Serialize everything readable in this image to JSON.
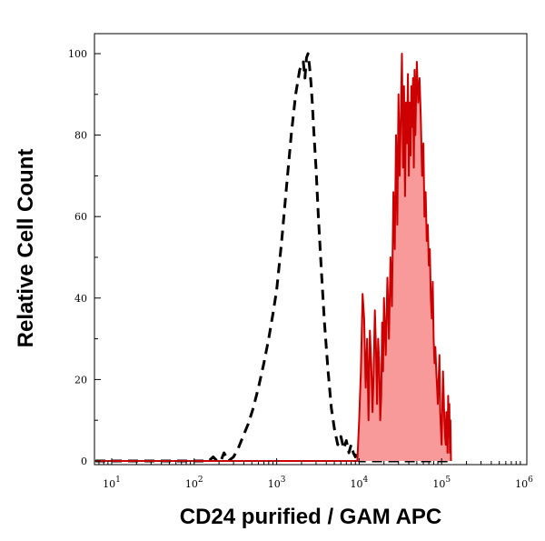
{
  "chart_data": {
    "type": "area",
    "xlabel": "CD24 purified / GAM APC",
    "ylabel": "Relative Cell Count",
    "x_scale": "log",
    "xlim": [
      5,
      130000
    ],
    "ylim": [
      0,
      100
    ],
    "x_ticks": [
      {
        "base": "10",
        "exp": "1",
        "value": 10
      },
      {
        "base": "10",
        "exp": "2",
        "value": 100
      },
      {
        "base": "10",
        "exp": "3",
        "value": 1000
      },
      {
        "base": "10",
        "exp": "4",
        "value": 10000
      },
      {
        "base": "10",
        "exp": "5",
        "value": 100000
      },
      {
        "base": "10",
        "exp": "6",
        "value": 1000000
      }
    ],
    "y_ticks": [
      "0",
      "20",
      "40",
      "60",
      "80",
      "100"
    ],
    "grid": false,
    "series": [
      {
        "style": "dashed",
        "color": "#000000",
        "x": [
          5,
          150,
          170,
          190,
          210,
          230,
          260,
          300,
          340,
          390,
          450,
          520,
          600,
          700,
          800,
          900,
          1000,
          1150,
          1300,
          1500,
          1700,
          1900,
          2100,
          2200,
          2300,
          2400,
          2500,
          2600,
          2700,
          2800,
          3000,
          3200,
          3500,
          3800,
          4200,
          4600,
          5000,
          5500,
          6000,
          6500,
          7000,
          7500,
          8000,
          8500,
          9000,
          9500,
          10000,
          130000
        ],
        "y": [
          0,
          0,
          1,
          0,
          0,
          2,
          0,
          1,
          3,
          6,
          9,
          13,
          18,
          24,
          30,
          36,
          42,
          54,
          66,
          80,
          90,
          96,
          98,
          94,
          99,
          100,
          97,
          93,
          88,
          82,
          72,
          60,
          46,
          34,
          22,
          13,
          8,
          4,
          6,
          3,
          5,
          2,
          4,
          2,
          1,
          2,
          0,
          0
        ]
      },
      {
        "style": "filled",
        "color": "#cc0000",
        "fill": "#f99a9a",
        "x": [
          5,
          9500,
          10000,
          10500,
          11000,
          11500,
          12000,
          12500,
          13000,
          13500,
          14000,
          14500,
          15000,
          15500,
          16000,
          16500,
          17000,
          17500,
          18000,
          18500,
          19000,
          19500,
          20000,
          21000,
          22000,
          23000,
          24000,
          25000,
          26000,
          27000,
          28000,
          29000,
          30000,
          31000,
          32000,
          33000,
          34000,
          35000,
          36000,
          37000,
          38000,
          39000,
          40000,
          41000,
          42000,
          43000,
          44000,
          45000,
          46000,
          47000,
          48000,
          49000,
          50000,
          52000,
          54000,
          56000,
          58000,
          60000,
          62000,
          64000,
          66000,
          68000,
          70000,
          72000,
          74000,
          76000,
          78000,
          80000,
          82000,
          84000,
          86000,
          88000,
          90000,
          92000,
          94000,
          96000,
          98000,
          100000,
          102000,
          104000,
          106000,
          108000,
          110000,
          112000,
          114000,
          116000,
          118000,
          120000,
          122000,
          124000,
          126000,
          128000,
          130000
        ],
        "y": [
          0,
          0,
          10,
          22,
          41,
          35,
          18,
          30,
          10,
          32,
          24,
          12,
          22,
          37,
          28,
          14,
          30,
          24,
          10,
          16,
          34,
          22,
          40,
          26,
          45,
          30,
          50,
          38,
          66,
          52,
          80,
          58,
          90,
          70,
          85,
          100,
          72,
          92,
          65,
          88,
          78,
          95,
          70,
          88,
          75,
          92,
          82,
          94,
          72,
          96,
          80,
          90,
          98,
          88,
          94,
          84,
          70,
          78,
          60,
          66,
          54,
          58,
          48,
          52,
          40,
          35,
          44,
          30,
          24,
          28,
          22,
          18,
          14,
          20,
          26,
          12,
          8,
          4,
          14,
          22,
          16,
          10,
          6,
          4,
          12,
          8,
          2,
          16,
          6,
          14,
          2,
          10,
          0
        ]
      }
    ]
  }
}
